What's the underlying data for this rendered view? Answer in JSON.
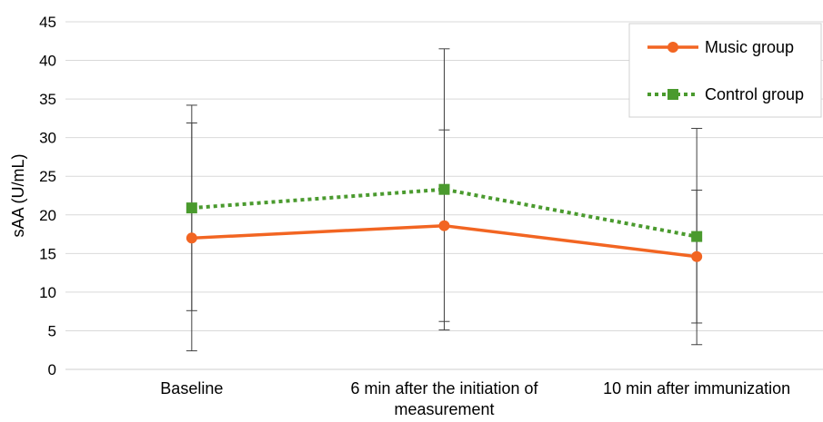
{
  "chart_data": {
    "type": "line",
    "categories": [
      "Baseline",
      "6 min after the initiation of measurement",
      "10 min after immunization"
    ],
    "category_lines": [
      [
        "Baseline"
      ],
      [
        "6 min after the initiation of",
        "measurement"
      ],
      [
        "10 min after immunization"
      ]
    ],
    "ylabel": "sAA (U/mL)",
    "ylim": [
      0,
      45
    ],
    "yticks": [
      0,
      5,
      10,
      15,
      20,
      25,
      30,
      35,
      40,
      45
    ],
    "grid": true,
    "legend_position": "top-right",
    "series": [
      {
        "name": "Music group",
        "values": [
          17.0,
          18.6,
          14.6
        ],
        "error_low": [
          2.4,
          6.2,
          6.0
        ],
        "error_high": [
          31.9,
          31.0,
          23.2
        ],
        "color": "#f26522",
        "line_style": "solid",
        "marker": "circle"
      },
      {
        "name": "Control group",
        "values": [
          20.9,
          23.3,
          17.2
        ],
        "error_low": [
          7.6,
          5.1,
          3.2
        ],
        "error_high": [
          34.2,
          41.5,
          31.2
        ],
        "color": "#4a9a2e",
        "line_style": "dotted",
        "marker": "square"
      }
    ]
  }
}
